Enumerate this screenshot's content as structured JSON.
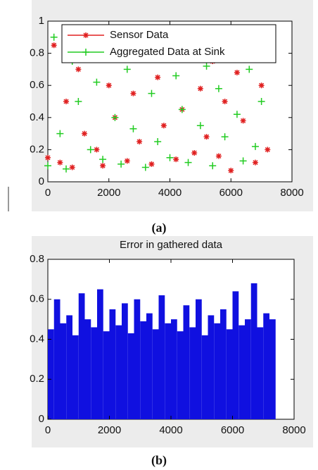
{
  "chart_data": [
    {
      "type": "scatter",
      "caption": "(a)",
      "x": [
        0,
        200,
        400,
        600,
        800,
        1000,
        1200,
        1400,
        1600,
        1800,
        2000,
        2200,
        2400,
        2600,
        2800,
        3000,
        3200,
        3400,
        3600,
        3800,
        4000,
        4200,
        4400,
        4600,
        4800,
        5000,
        5200,
        5400,
        5600,
        5800,
        6000,
        6200,
        6400,
        6600,
        6800,
        7000,
        7200
      ],
      "series": [
        {
          "name": "Sensor Data",
          "color": "#e02020",
          "marker": "star",
          "values": [
            0.15,
            0.85,
            0.12,
            0.5,
            0.09,
            0.7,
            0.3,
            0.88,
            0.2,
            0.1,
            0.6,
            0.4,
            0.8,
            0.13,
            0.55,
            0.25,
            0.9,
            0.11,
            0.65,
            0.35,
            0.78,
            0.14,
            0.45,
            0.82,
            0.18,
            0.58,
            0.28,
            0.75,
            0.16,
            0.5,
            0.07,
            0.68,
            0.38,
            0.86,
            0.12,
            0.6,
            0.2
          ]
        },
        {
          "name": "Aggregated Data at Sink",
          "color": "#22cc22",
          "marker": "plus",
          "values": [
            0.1,
            0.9,
            0.3,
            0.08,
            0.75,
            0.5,
            0.95,
            0.2,
            0.62,
            0.14,
            0.85,
            0.4,
            0.11,
            0.7,
            0.33,
            0.88,
            0.09,
            0.55,
            0.25,
            0.8,
            0.15,
            0.66,
            0.45,
            0.12,
            0.9,
            0.35,
            0.72,
            0.1,
            0.58,
            0.28,
            0.83,
            0.42,
            0.13,
            0.7,
            0.22,
            0.5,
            0.78
          ]
        }
      ],
      "xlim": [
        0,
        8000
      ],
      "xticks": [
        0,
        2000,
        4000,
        6000,
        8000
      ],
      "ylim": [
        0,
        1
      ],
      "yticks": [
        0,
        0.2,
        0.4,
        0.6,
        0.8,
        1
      ],
      "legend": "top"
    },
    {
      "type": "bar",
      "title": "Error in gathered data",
      "caption": "(b)",
      "color": "#1010e0",
      "x": [
        0,
        200,
        400,
        600,
        800,
        1000,
        1200,
        1400,
        1600,
        1800,
        2000,
        2200,
        2400,
        2600,
        2800,
        3000,
        3200,
        3400,
        3600,
        3800,
        4000,
        4200,
        4400,
        4600,
        4800,
        5000,
        5200,
        5400,
        5600,
        5800,
        6000,
        6200,
        6400,
        6600,
        6800,
        7000,
        7200
      ],
      "values": [
        0.45,
        0.6,
        0.48,
        0.52,
        0.42,
        0.63,
        0.5,
        0.46,
        0.65,
        0.44,
        0.55,
        0.47,
        0.58,
        0.43,
        0.6,
        0.49,
        0.53,
        0.45,
        0.62,
        0.48,
        0.5,
        0.44,
        0.57,
        0.46,
        0.6,
        0.42,
        0.52,
        0.48,
        0.55,
        0.45,
        0.64,
        0.47,
        0.5,
        0.68,
        0.46,
        0.53,
        0.5
      ],
      "xlim": [
        0,
        8000
      ],
      "xticks": [
        0,
        2000,
        4000,
        6000,
        8000
      ],
      "ylim": [
        0,
        0.8
      ],
      "yticks": [
        0,
        0.2,
        0.4,
        0.6,
        0.8
      ]
    }
  ]
}
